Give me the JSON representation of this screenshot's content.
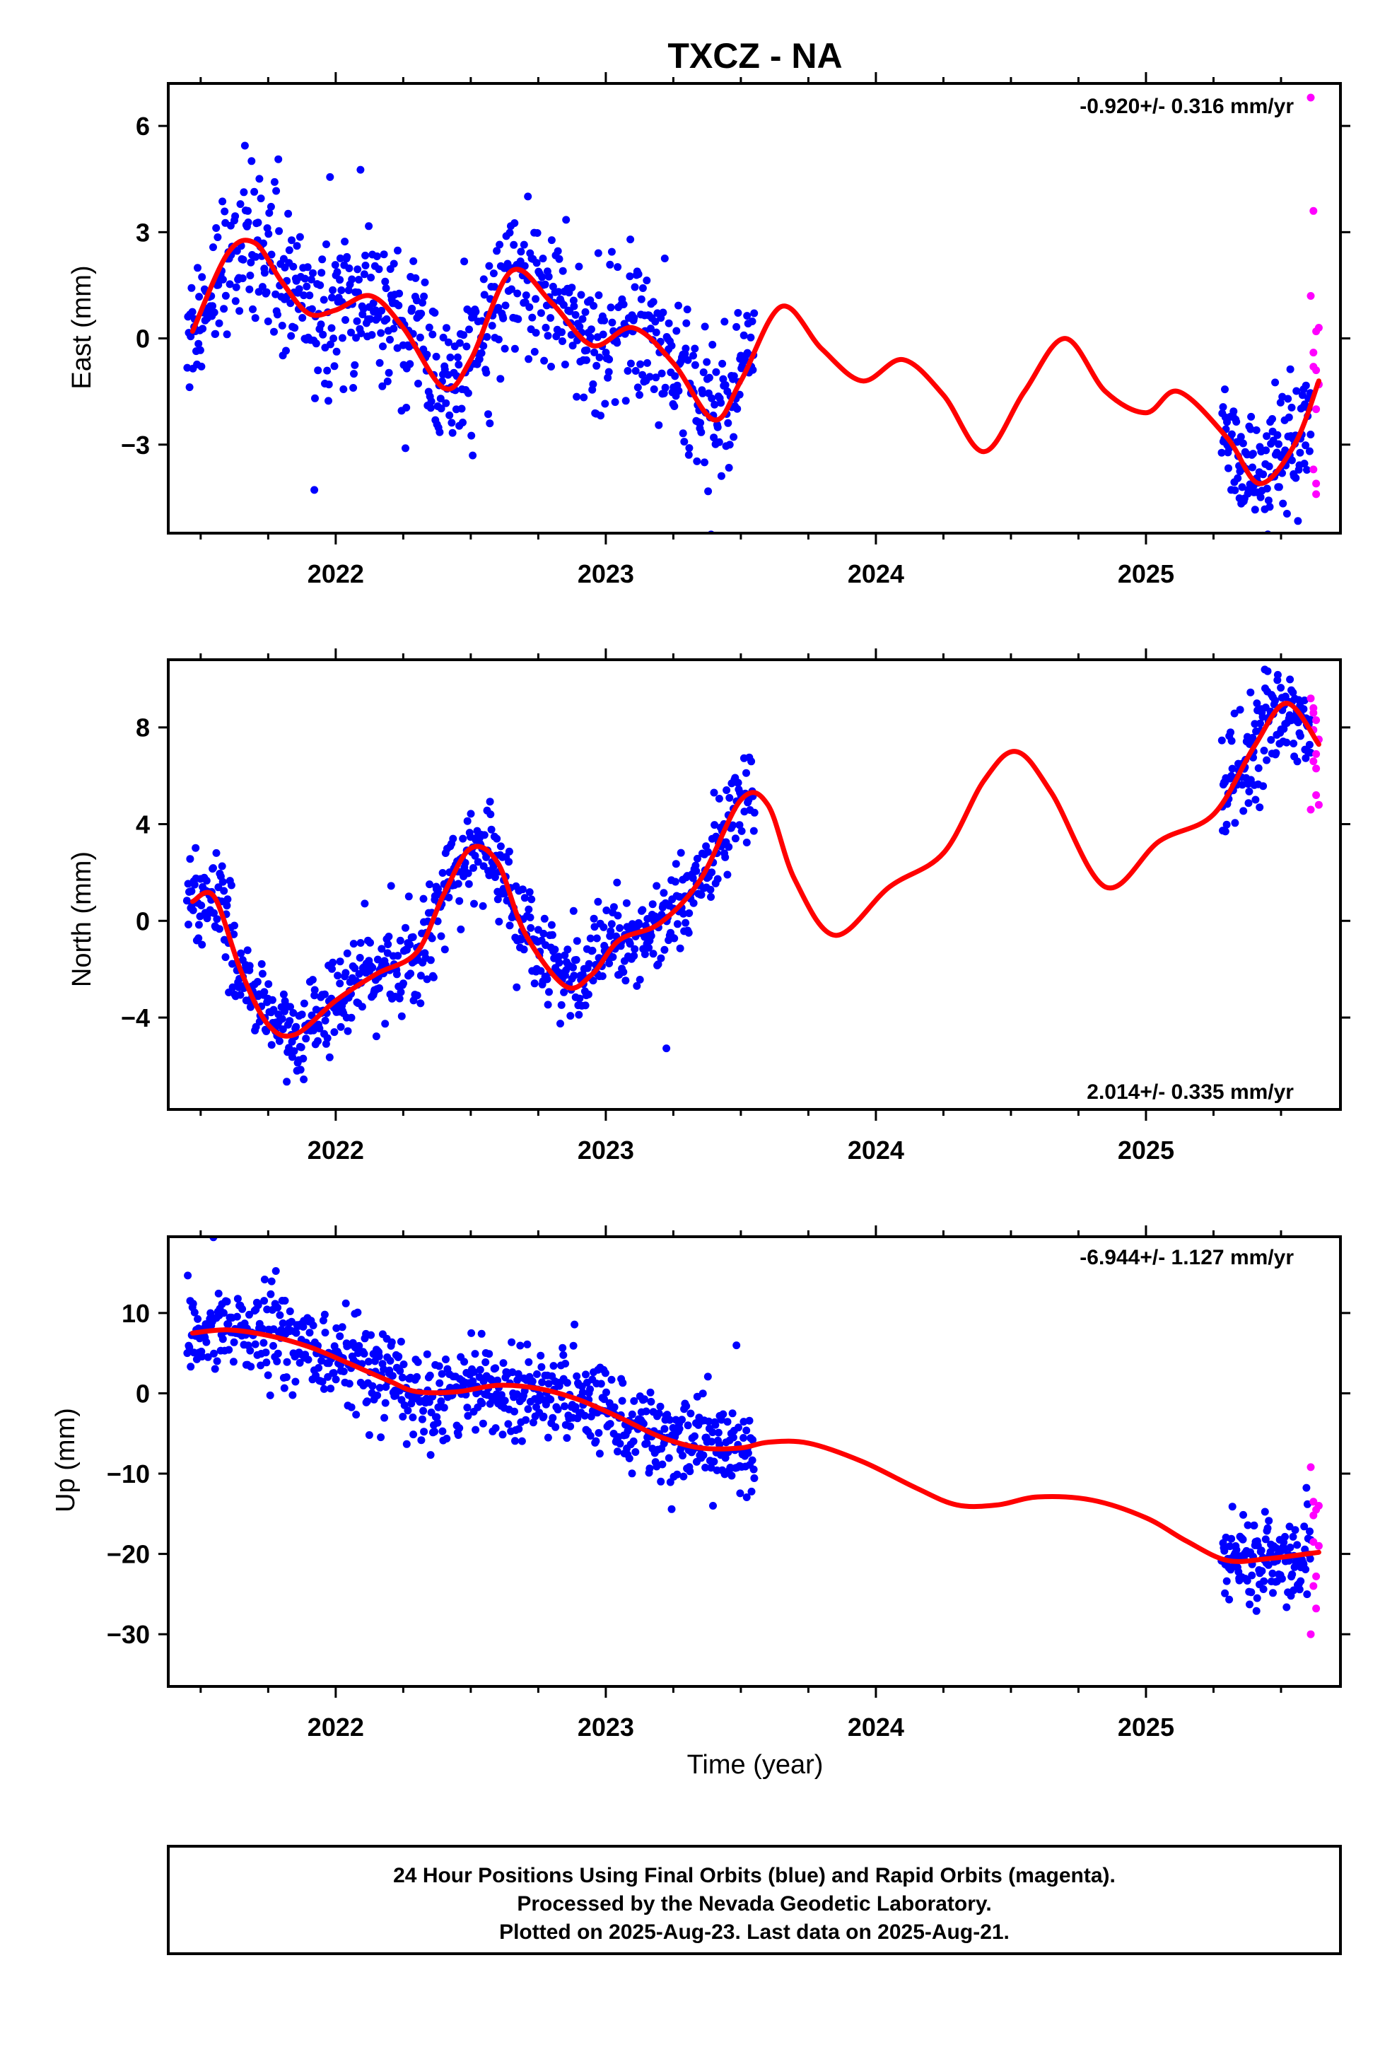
{
  "title": "TXCZ - NA",
  "colors": {
    "final": "#0000ff",
    "rapid": "#ff00ff",
    "model": "#ff0000"
  },
  "chart_data": [
    {
      "type": "scatter",
      "ylabel": "East (mm)",
      "rate": "-0.920+/- 0.316 mm/yr",
      "xlim": [
        2021.38,
        2025.72
      ],
      "ylim": [
        -5.5,
        7.2
      ],
      "xticks": [
        2022,
        2023,
        2024,
        2025
      ],
      "xtick_labels": [
        "2022",
        "2023",
        "2024",
        "2025"
      ],
      "yticks": [
        -3,
        0,
        3,
        6
      ],
      "ytick_labels": [
        "−3",
        "0",
        "3",
        "6"
      ],
      "model_amplitude": 1.6,
      "model": {
        "x": [
          2021.47,
          2021.6,
          2021.7,
          2021.8,
          2021.9,
          2022.0,
          2022.13,
          2022.25,
          2022.4,
          2022.5,
          2022.65,
          2022.8,
          2022.95,
          2023.1,
          2023.25,
          2023.4,
          2023.5,
          2023.65,
          2023.8,
          2023.95,
          2024.1,
          2024.25,
          2024.4,
          2024.55,
          2024.7,
          2024.85,
          2025.0,
          2025.12,
          2025.3,
          2025.42,
          2025.55,
          2025.64
        ],
        "y": [
          0.2,
          2.4,
          2.7,
          1.6,
          0.7,
          0.8,
          1.2,
          0.3,
          -1.4,
          -0.6,
          1.9,
          1.0,
          -0.2,
          0.3,
          -0.7,
          -2.3,
          -1.2,
          0.9,
          -0.3,
          -1.2,
          -0.6,
          -1.6,
          -3.2,
          -1.5,
          0.0,
          -1.5,
          -2.1,
          -1.5,
          -2.8,
          -4.1,
          -3.0,
          -1.2
        ]
      },
      "segments": [
        {
          "x0": 2021.45,
          "x1": 2023.55,
          "n": 760
        },
        {
          "x0": 2025.28,
          "x1": 2025.61,
          "n": 140
        }
      ],
      "rapid": {
        "x": [
          2025.61,
          2025.62,
          2025.63,
          2025.62,
          2025.63,
          2025.64,
          2025.62,
          2025.63,
          2025.61,
          2025.64,
          2025.63,
          2025.62,
          2025.63
        ],
        "y": [
          6.8,
          3.6,
          0.2,
          -0.4,
          -0.9,
          -1.3,
          -3.7,
          -4.4,
          1.2,
          0.3,
          -4.1,
          -0.8,
          -2.0
        ]
      }
    },
    {
      "type": "scatter",
      "ylabel": "North (mm)",
      "rate": "2.014+/- 0.335 mm/yr",
      "xlim": [
        2021.38,
        2025.72
      ],
      "ylim": [
        -7.8,
        10.8
      ],
      "xticks": [
        2022,
        2023,
        2024,
        2025
      ],
      "xtick_labels": [
        "2022",
        "2023",
        "2024",
        "2025"
      ],
      "yticks": [
        -4,
        0,
        4,
        8
      ],
      "ytick_labels": [
        "−4",
        "0",
        "4",
        "8"
      ],
      "model_amplitude": 1.6,
      "model": {
        "x": [
          2021.47,
          2021.55,
          2021.65,
          2021.75,
          2021.85,
          2022.0,
          2022.15,
          2022.3,
          2022.4,
          2022.5,
          2022.6,
          2022.7,
          2022.85,
          2022.95,
          2023.05,
          2023.2,
          2023.35,
          2023.5,
          2023.6,
          2023.7,
          2023.85,
          2024.05,
          2024.25,
          2024.4,
          2024.52,
          2024.65,
          2024.85,
          2025.05,
          2025.25,
          2025.4,
          2025.52,
          2025.64
        ],
        "y": [
          0.8,
          1.0,
          -2.1,
          -4.3,
          -4.7,
          -3.3,
          -2.2,
          -1.3,
          1.1,
          3.0,
          2.4,
          -0.5,
          -2.7,
          -2.2,
          -0.8,
          -0.1,
          1.7,
          5.0,
          4.8,
          1.7,
          -0.6,
          1.4,
          2.8,
          5.8,
          7.0,
          5.3,
          1.4,
          3.3,
          4.4,
          7.2,
          9.0,
          7.3
        ]
      },
      "segments": [
        {
          "x0": 2021.45,
          "x1": 2023.55,
          "n": 760
        },
        {
          "x0": 2025.28,
          "x1": 2025.61,
          "n": 140
        }
      ],
      "rapid": {
        "x": [
          2025.61,
          2025.62,
          2025.63,
          2025.62,
          2025.64,
          2025.63,
          2025.62,
          2025.63,
          2025.64,
          2025.61,
          2025.63,
          2025.62
        ],
        "y": [
          9.2,
          8.8,
          8.3,
          7.9,
          7.5,
          6.9,
          6.6,
          5.2,
          4.8,
          4.6,
          6.3,
          8.6
        ]
      }
    },
    {
      "type": "scatter",
      "ylabel": "Up (mm)",
      "rate": "-6.944+/- 1.127 mm/yr",
      "xlim": [
        2021.38,
        2025.72
      ],
      "ylim": [
        -36.5,
        19.5
      ],
      "xticks": [
        2022,
        2023,
        2024,
        2025
      ],
      "xtick_labels": [
        "2022",
        "2023",
        "2024",
        "2025"
      ],
      "yticks": [
        -30,
        -20,
        -10,
        0,
        10
      ],
      "ytick_labels": [
        "−30",
        "−20",
        "−10",
        "0",
        "10"
      ],
      "model_amplitude": 4.5,
      "model": {
        "x": [
          2021.47,
          2021.6,
          2021.75,
          2021.9,
          2022.05,
          2022.2,
          2022.3,
          2022.45,
          2022.6,
          2022.75,
          2022.9,
          2023.05,
          2023.2,
          2023.35,
          2023.5,
          2023.6,
          2023.75,
          2023.95,
          2024.15,
          2024.3,
          2024.45,
          2024.6,
          2024.8,
          2025.0,
          2025.15,
          2025.3,
          2025.45,
          2025.64
        ],
        "y": [
          7.5,
          7.9,
          7.2,
          5.8,
          3.7,
          1.5,
          0.2,
          0.2,
          1.0,
          0.6,
          -0.8,
          -3.0,
          -5.4,
          -6.8,
          -6.8,
          -6.1,
          -6.2,
          -8.5,
          -11.8,
          -13.9,
          -13.9,
          -12.9,
          -13.3,
          -15.5,
          -18.4,
          -20.8,
          -20.6,
          -19.8
        ]
      },
      "segments": [
        {
          "x0": 2021.45,
          "x1": 2023.55,
          "n": 760
        },
        {
          "x0": 2025.28,
          "x1": 2025.61,
          "n": 140
        }
      ],
      "rapid": {
        "x": [
          2025.61,
          2025.62,
          2025.63,
          2025.62,
          2025.64,
          2025.63,
          2025.62,
          2025.63,
          2025.61,
          2025.64,
          2025.62
        ],
        "y": [
          -9.2,
          -13.5,
          -14.5,
          -15.2,
          -19.0,
          -22.8,
          -24.0,
          -26.8,
          -30.0,
          -14.0,
          -18.5
        ]
      }
    }
  ],
  "xlabel": "Time (year)",
  "footer": {
    "line1": "24 Hour Positions Using Final Orbits (blue) and Rapid Orbits (magenta).",
    "line2": "Processed by the Nevada Geodetic Laboratory.",
    "line3": "Plotted on 2025-Aug-23. Last data on 2025-Aug-21."
  }
}
